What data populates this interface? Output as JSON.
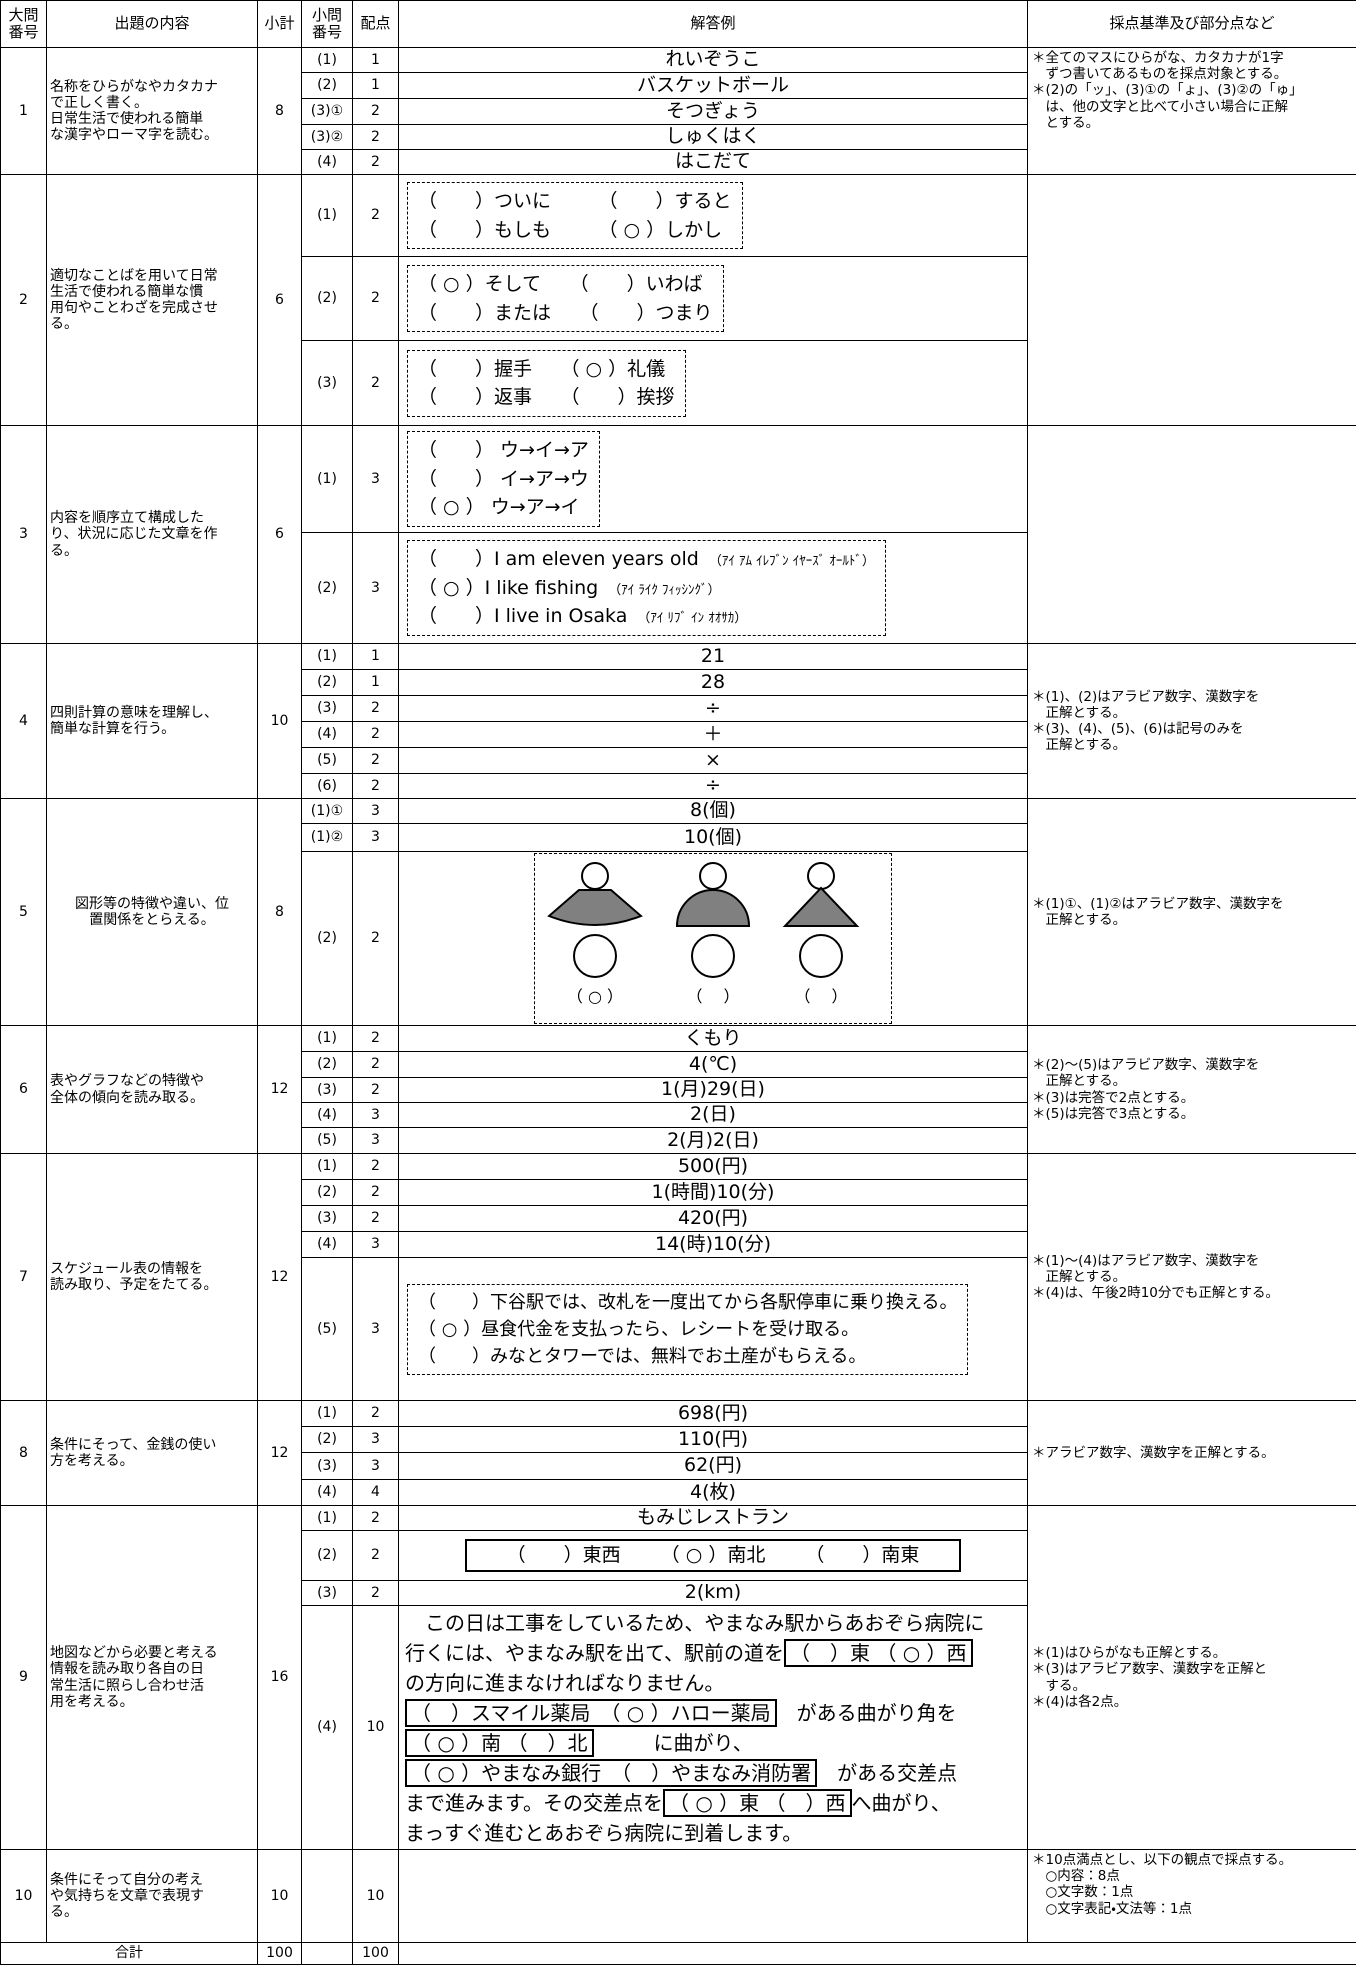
{
  "header": {
    "major_no": "大問\n番号",
    "content": "出題の内容",
    "subtotal": "小計",
    "minor_no": "小問\n番号",
    "points": "配点",
    "answer": "解答例",
    "criteria": "採点基準及び部分点など"
  },
  "questions": [
    {
      "no": "1",
      "content": "名称をひらがなやカタカナ\nで正しく書く。\n日常生活で使われる簡単\nな漢字やローマ字を読む。",
      "subtotal": 8,
      "criteria": [
        "＊全てのマスにひらがな、カタカナが1字",
        "　ずつ書いてあるものを採点対象とする。",
        "＊(2)の「ッ」、(3)①の「ょ」、(3)②の「ゅ」",
        "　は、他の文字と比べて小さい場合に正解",
        "　とする。"
      ],
      "items": [
        {
          "no": "(1)",
          "points": 1,
          "answer": "れいぞうこ"
        },
        {
          "no": "(2)",
          "points": 1,
          "answer": "バスケットボール"
        },
        {
          "no": "(3)①",
          "points": 2,
          "answer": "そつぎょう"
        },
        {
          "no": "(3)②",
          "points": 2,
          "answer": "しゅくはく"
        },
        {
          "no": "(4)",
          "points": 2,
          "answer": "はこだて"
        }
      ]
    },
    {
      "no": "2",
      "content": "適切なことばを用いて日常\n生活で使われる簡単な慣\n用句やことわざを完成させ\nる。",
      "subtotal": 6,
      "criteria": [],
      "items": [
        {
          "no": "(1)",
          "points": 2,
          "choices": [
            "（　　）ついに　　　（　　）すると",
            "（　　）もしも　　　（ ○ ）しかし"
          ]
        },
        {
          "no": "(2)",
          "points": 2,
          "choices": [
            "（ ○ ）そして　　（　　）いわば",
            "（　　）または　　（　　）つまり"
          ]
        },
        {
          "no": "(3)",
          "points": 2,
          "choices": [
            "（　　）握手　　（ ○ ）礼儀",
            "（　　）返事　　（　　）挨拶"
          ]
        }
      ]
    },
    {
      "no": "3",
      "content": "内容を順序立て構成した\nり、状況に応じた文章を作\nる。",
      "subtotal": 6,
      "criteria": [],
      "items": [
        {
          "no": "(1)",
          "points": 3,
          "choices": [
            "（　　） ウ→イ→ア",
            "（　　） イ→ア→ウ",
            "（ ○ ） ウ→ア→イ"
          ]
        },
        {
          "no": "(2)",
          "points": 3,
          "choices": [
            {
              "text": "（　　）I am eleven years old",
              "reading": "（ｱｲ ｱﾑ ｲﾚﾌﾞﾝ ｲﾔｰｽﾞ ｵｰﾙﾄﾞ）"
            },
            {
              "text": "（ ○ ）I like fishing",
              "reading": "（ｱｲ ﾗｲｸ ﾌｨｯｼﾝｸﾞ）"
            },
            {
              "text": "（　　）I live in Osaka",
              "reading": "（ｱｲ ﾘﾌﾞ ｲﾝ ｵｵｻｶ）"
            }
          ]
        }
      ]
    },
    {
      "no": "4",
      "content": "四則計算の意味を理解し、\n簡単な計算を行う。",
      "subtotal": 10,
      "criteria": [
        "＊(1)、(2)はアラビア数字、漢数字を",
        "　正解とする。",
        "＊(3)、(4)、(5)、(6)は記号のみを",
        "　正解とする。"
      ],
      "items": [
        {
          "no": "(1)",
          "points": 1,
          "answer": "21"
        },
        {
          "no": "(2)",
          "points": 1,
          "answer": "28"
        },
        {
          "no": "(3)",
          "points": 2,
          "answer": "÷"
        },
        {
          "no": "(4)",
          "points": 2,
          "answer": "＋"
        },
        {
          "no": "(5)",
          "points": 2,
          "answer": "×"
        },
        {
          "no": "(6)",
          "points": 2,
          "answer": "÷"
        }
      ]
    },
    {
      "no": "5",
      "content": "図形等の特徴や違い、位\n置関係をとらえる。",
      "subtotal": 8,
      "criteria": [
        "＊(1)①、(1)②はアラビア数字、漢数字を",
        "　正解とする。"
      ],
      "items": [
        {
          "no": "(1)①",
          "points": 3,
          "answer": "8(個)"
        },
        {
          "no": "(1)②",
          "points": 3,
          "answer": "10(個)"
        },
        {
          "no": "(2)",
          "points": 2,
          "figure": [
            "（ ○ ）",
            "（　 ）",
            "（　 ）"
          ]
        }
      ]
    },
    {
      "no": "6",
      "content": "表やグラフなどの特徴や\n全体の傾向を読み取る。",
      "subtotal": 12,
      "criteria": [
        "＊(2)～(5)はアラビア数字、漢数字を",
        "　正解とする。",
        "＊(3)は完答で2点とする。",
        "＊(5)は完答で3点とする。"
      ],
      "items": [
        {
          "no": "(1)",
          "points": 2,
          "answer": "くもり"
        },
        {
          "no": "(2)",
          "points": 2,
          "answer": "4(℃)"
        },
        {
          "no": "(3)",
          "points": 2,
          "answer": "1(月)29(日)"
        },
        {
          "no": "(4)",
          "points": 3,
          "answer": "2(日)"
        },
        {
          "no": "(5)",
          "points": 3,
          "answer": "2(月)2(日)"
        }
      ]
    },
    {
      "no": "7",
      "content": "スケジュール表の情報を\n読み取り、予定をたてる。",
      "subtotal": 12,
      "criteria": [
        "＊(1)～(4)はアラビア数字、漢数字を",
        "　正解とする。",
        "＊(4)は、午後2時10分でも正解とする。"
      ],
      "items": [
        {
          "no": "(1)",
          "points": 2,
          "answer": "500(円)"
        },
        {
          "no": "(2)",
          "points": 2,
          "answer": "1(時間)10(分)"
        },
        {
          "no": "(3)",
          "points": 2,
          "answer": "420(円)"
        },
        {
          "no": "(4)",
          "points": 3,
          "answer": "14(時)10(分)"
        },
        {
          "no": "(5)",
          "points": 3,
          "choices": [
            "（　　）下谷駅では、改札を一度出てから各駅停車に乗り換える。",
            "（ ○ ）昼食代金を支払ったら、レシートを受け取る。",
            "（　　）みなとタワーでは、無料でお土産がもらえる。"
          ]
        }
      ]
    },
    {
      "no": "8",
      "content": "条件にそって、金銭の使い\n方を考える。",
      "subtotal": 12,
      "criteria": [
        "＊アラビア数字、漢数字を正解とする。"
      ],
      "items": [
        {
          "no": "(1)",
          "points": 2,
          "answer": "698(円)"
        },
        {
          "no": "(2)",
          "points": 3,
          "answer": "110(円)"
        },
        {
          "no": "(3)",
          "points": 3,
          "answer": "62(円)"
        },
        {
          "no": "(4)",
          "points": 4,
          "answer": "4(枚)"
        }
      ]
    },
    {
      "no": "9",
      "content": "地図などから必要と考える\n情報を読み取り各自の日\n常生活に照らし合わせ活\n用を考える。",
      "subtotal": 16,
      "criteria": [
        "＊(1)はひらがなも正解とする。",
        "＊(3)はアラビア数字、漢数字を正解と",
        "　する。",
        "＊(4)は各2点。"
      ],
      "items": [
        {
          "no": "(1)",
          "points": 2,
          "answer": "もみじレストラン"
        },
        {
          "no": "(2)",
          "points": 2,
          "options": [
            "（　　）東西",
            "（ ○ ）南北",
            "（　　）南東"
          ]
        },
        {
          "no": "(3)",
          "points": 2,
          "answer": "2(km)"
        },
        {
          "no": "(4)",
          "points": 10,
          "passage": [
            [
              "　この日は工事をしているため、やまなみ駅からあおぞら病院に"
            ],
            [
              "行くには、やまなみ駅を出て、駅前の道を",
              {
                "box": "（　）東 （ ○ ）西"
              }
            ],
            [
              "の方向に進まなければなりません。"
            ],
            [
              {
                "box": "（　）スマイル薬局　（ ○ ）ハロー薬局"
              },
              "　がある曲がり角を"
            ],
            [
              {
                "box": "（ ○ ）南 （　）北"
              },
              "　　　に曲がり、"
            ],
            [
              {
                "box": "（ ○ ）やまなみ銀行　（　）やまなみ消防署"
              },
              "　がある交差点"
            ],
            [
              "まで進みます。その交差点を",
              {
                "box": "（ ○ ）東 （　）西"
              },
              "へ曲がり、"
            ],
            [
              "まっすぐ進むとあおぞら病院に到着します。"
            ]
          ]
        }
      ]
    },
    {
      "no": "10",
      "content": "条件にそって自分の考え\nや気持ちを文章で表現す\nる。",
      "subtotal": 10,
      "criteria": [
        "＊10点満点とし、以下の観点で採点する。",
        "　○内容：8点",
        "　○文字数：1点",
        "　○文字表記・文法等：1点"
      ],
      "items": [
        {
          "points": 10
        }
      ]
    }
  ],
  "total": {
    "label": "合計",
    "subtotal": 100,
    "points": 100
  }
}
